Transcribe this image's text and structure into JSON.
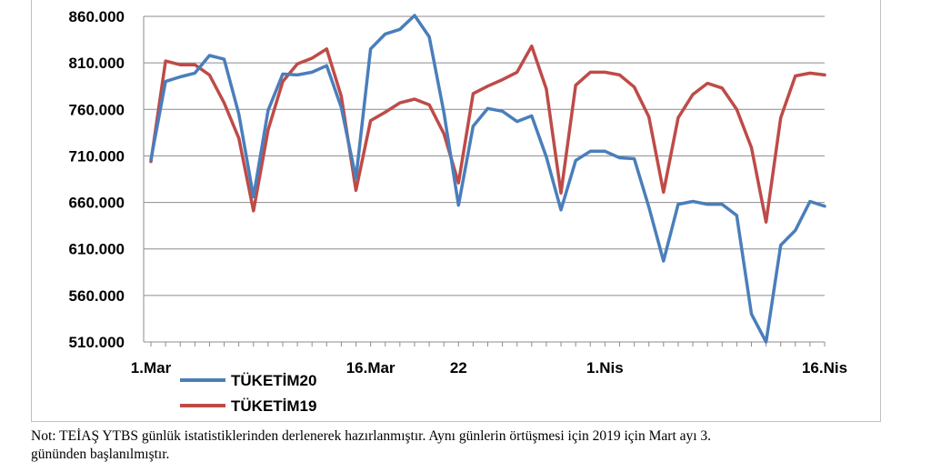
{
  "chart_data": {
    "type": "line",
    "title": "",
    "xlabel": "",
    "ylabel": "",
    "ylim": [
      510000,
      860000
    ],
    "y_ticks": [
      "860.000",
      "810.000",
      "760.000",
      "710.000",
      "660.000",
      "610.000",
      "560.000",
      "510.000"
    ],
    "y_tick_values": [
      860000,
      810000,
      760000,
      710000,
      660000,
      610000,
      560000,
      510000
    ],
    "x_tick_labels": [
      {
        "day": 1,
        "label": "1.Mar"
      },
      {
        "day": 16,
        "label": "16.Mar"
      },
      {
        "day": 22,
        "label": "22"
      },
      {
        "day": 32,
        "label": "1.Nis"
      },
      {
        "day": 47,
        "label": "16.Nis"
      }
    ],
    "x_days": [
      1,
      2,
      3,
      4,
      5,
      6,
      7,
      8,
      9,
      10,
      11,
      12,
      13,
      14,
      15,
      16,
      17,
      18,
      19,
      20,
      21,
      22,
      23,
      24,
      25,
      26,
      27,
      28,
      29,
      30,
      31,
      32,
      33,
      34,
      35,
      36,
      37,
      38,
      39,
      40,
      41,
      42,
      43,
      44,
      45,
      46,
      47
    ],
    "grid": true,
    "legend_position": "bottom-left",
    "series": [
      {
        "name": "TÜKETİM20",
        "color": "#4a7ebb",
        "values": [
          706000,
          790000,
          795000,
          799000,
          818000,
          814000,
          755000,
          666000,
          759000,
          798000,
          797000,
          800000,
          807000,
          762000,
          686000,
          825000,
          841000,
          846000,
          861000,
          838000,
          757000,
          657000,
          742000,
          761000,
          758000,
          747000,
          753000,
          709000,
          652000,
          705000,
          715000,
          715000,
          708000,
          707000,
          655000,
          597000,
          658000,
          661000,
          658000,
          658000,
          646000,
          540000,
          510000,
          614000,
          630000,
          661000,
          656000
        ]
      },
      {
        "name": "TÜKETİM19",
        "color": "#be4b48",
        "values": [
          704000,
          812000,
          808000,
          808000,
          797000,
          767000,
          729000,
          651000,
          738000,
          790000,
          809000,
          815000,
          825000,
          774000,
          673000,
          748000,
          757000,
          767000,
          771000,
          765000,
          734000,
          681000,
          777000,
          785000,
          792000,
          800000,
          828000,
          782000,
          670000,
          786000,
          800000,
          800000,
          797000,
          784000,
          752000,
          671000,
          751000,
          776000,
          788000,
          783000,
          760000,
          719000,
          639000,
          751000,
          796000,
          799000,
          797000
        ]
      }
    ]
  },
  "note": {
    "line1": "Not: TEİAŞ YTBS günlük istatistiklerinden derlenerek hazırlanmıştır. Aynı günlerin örtüşmesi için 2019 için Mart ayı 3.",
    "line2": "gününden başlanılmıştır."
  }
}
